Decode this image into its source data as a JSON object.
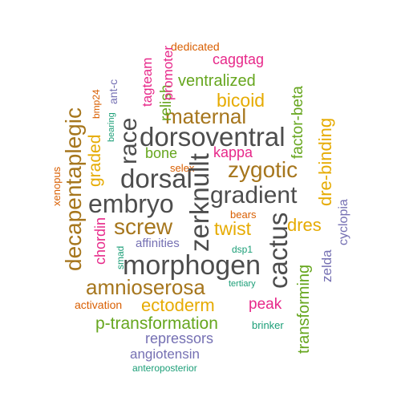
{
  "palette": {
    "dark_gray": "#4d4d4d",
    "brown": "#a6761d",
    "green": "#66a61e",
    "orange": "#d95f02",
    "magenta": "#e7298a",
    "purple": "#7570b3",
    "teal": "#1b9e77",
    "gold": "#e6ab02"
  },
  "words": [
    {
      "text": "dorsoventral",
      "color": "dark_gray"
    },
    {
      "text": "morphogen",
      "color": "dark_gray"
    },
    {
      "text": "gradient",
      "color": "dark_gray"
    },
    {
      "text": "embryo",
      "color": "dark_gray"
    },
    {
      "text": "dorsal",
      "color": "dark_gray"
    },
    {
      "text": "zerknullt",
      "color": "dark_gray"
    },
    {
      "text": "cactus",
      "color": "dark_gray"
    },
    {
      "text": "race",
      "color": "dark_gray"
    },
    {
      "text": "maternal",
      "color": "brown"
    },
    {
      "text": "zygotic",
      "color": "brown"
    },
    {
      "text": "decapentaplegic",
      "color": "brown"
    },
    {
      "text": "screw",
      "color": "brown"
    },
    {
      "text": "amnioserosa",
      "color": "brown"
    },
    {
      "text": "bicoid",
      "color": "gold"
    },
    {
      "text": "twist",
      "color": "gold"
    },
    {
      "text": "dres",
      "color": "gold"
    },
    {
      "text": "ectoderm",
      "color": "gold"
    },
    {
      "text": "dre-binding",
      "color": "gold"
    },
    {
      "text": "graded",
      "color": "gold"
    },
    {
      "text": "ventralized",
      "color": "green"
    },
    {
      "text": "factor-beta",
      "color": "green"
    },
    {
      "text": "bone",
      "color": "green"
    },
    {
      "text": "relish",
      "color": "green"
    },
    {
      "text": "transforming",
      "color": "green"
    },
    {
      "text": "p-transformation",
      "color": "green"
    },
    {
      "text": "caggtag",
      "color": "magenta"
    },
    {
      "text": "kappa",
      "color": "magenta"
    },
    {
      "text": "promoter",
      "color": "magenta"
    },
    {
      "text": "tagteam",
      "color": "magenta"
    },
    {
      "text": "chordin",
      "color": "magenta"
    },
    {
      "text": "peak",
      "color": "magenta"
    },
    {
      "text": "dedicated",
      "color": "orange"
    },
    {
      "text": "selex",
      "color": "orange"
    },
    {
      "text": "bears",
      "color": "orange"
    },
    {
      "text": "activation",
      "color": "orange"
    },
    {
      "text": "xenopus",
      "color": "orange"
    },
    {
      "text": "bmp24",
      "color": "orange"
    },
    {
      "text": "ant-c",
      "color": "purple"
    },
    {
      "text": "affinities",
      "color": "purple"
    },
    {
      "text": "repressors",
      "color": "purple"
    },
    {
      "text": "angiotensin",
      "color": "purple"
    },
    {
      "text": "zelda",
      "color": "purple"
    },
    {
      "text": "cyclopia",
      "color": "purple"
    },
    {
      "text": "bearing",
      "color": "teal"
    },
    {
      "text": "smad",
      "color": "teal"
    },
    {
      "text": "dsp1",
      "color": "teal"
    },
    {
      "text": "tertiary",
      "color": "teal"
    },
    {
      "text": "brinker",
      "color": "teal"
    },
    {
      "text": "anteroposterior",
      "color": "teal"
    }
  ]
}
